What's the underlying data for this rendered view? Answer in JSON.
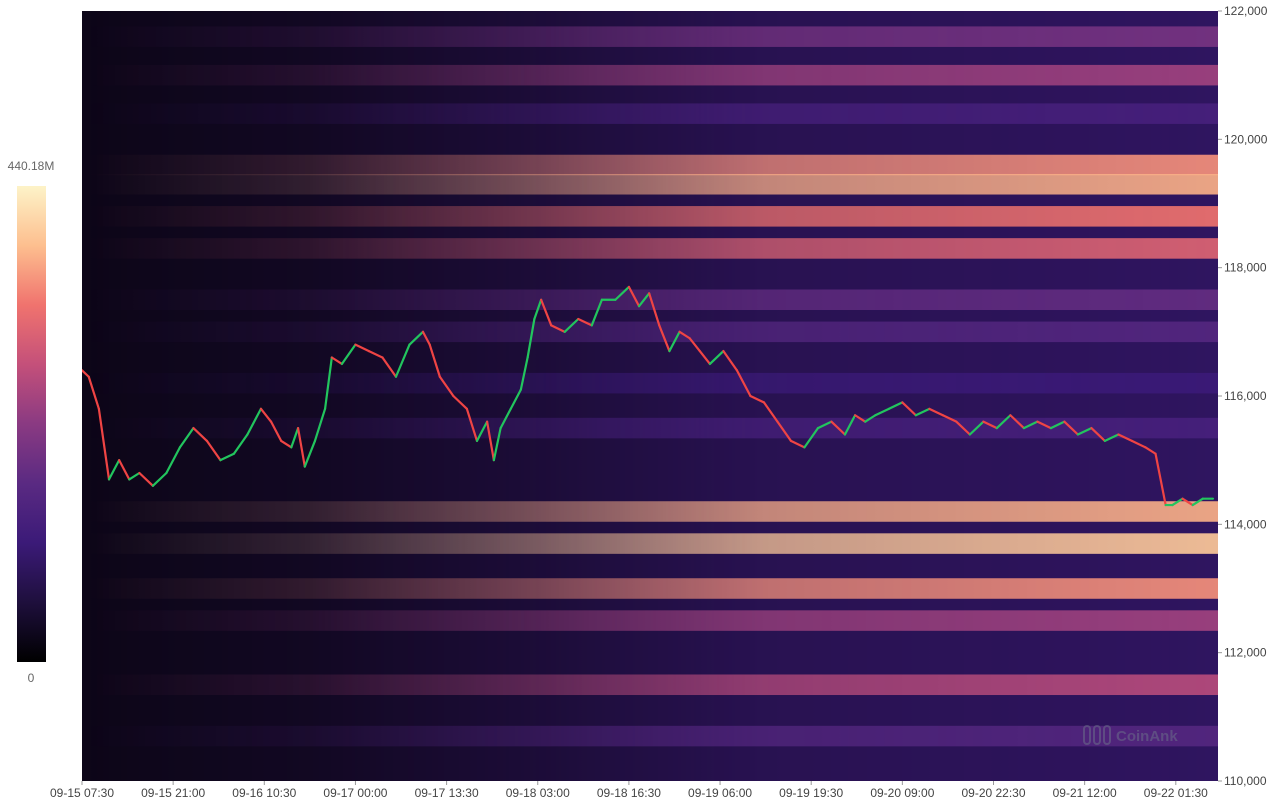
{
  "chart_data": {
    "type": "heatmap",
    "title": "",
    "xlabel": "",
    "ylabel": "",
    "x_tick_labels": [
      "09-15 07:30",
      "09-15 21:00",
      "09-16 10:30",
      "09-17 00:00",
      "09-17 13:30",
      "09-18 03:00",
      "09-18 16:30",
      "09-19 06:00",
      "09-19 19:30",
      "09-20 09:00",
      "09-20 22:30",
      "09-21 12:00",
      "09-22 01:30"
    ],
    "x_range": [
      "09-15 07:30",
      "09-22 07:45"
    ],
    "y_tick_labels": [
      "122,000",
      "120,000",
      "118,000",
      "116,000",
      "114,000",
      "112,000",
      "110,000"
    ],
    "y_range": [
      110000,
      122000
    ],
    "colorbar": {
      "min_label": "0",
      "max_label": "440.18M",
      "min_value": 0,
      "max_value": 440180000,
      "colors": [
        "#000004",
        "#1b0c41",
        "#4a0c6b",
        "#781c6d",
        "#a52c60",
        "#cf4446",
        "#ed6925",
        "#fb9b06",
        "#f7d13d",
        "#fcffa4"
      ],
      "displayed_colors": [
        "#000000",
        "#1e0f3c",
        "#3b1a78",
        "#5a2a82",
        "#8a3a82",
        "#c4507a",
        "#f0736e",
        "#fdbf8f",
        "#fdf3c8"
      ]
    },
    "liquidity_bands": [
      {
        "price": 121600,
        "level": 0.45
      },
      {
        "price": 121000,
        "level": 0.55
      },
      {
        "price": 120400,
        "level": 0.3
      },
      {
        "price": 119600,
        "level": 0.8
      },
      {
        "price": 119300,
        "level": 0.85
      },
      {
        "price": 118800,
        "level": 0.75
      },
      {
        "price": 118300,
        "level": 0.7
      },
      {
        "price": 117500,
        "level": 0.4
      },
      {
        "price": 117000,
        "level": 0.35
      },
      {
        "price": 116200,
        "level": 0.25
      },
      {
        "price": 115500,
        "level": 0.3
      },
      {
        "price": 114200,
        "level": 0.85
      },
      {
        "price": 113700,
        "level": 0.9
      },
      {
        "price": 113000,
        "level": 0.8
      },
      {
        "price": 112500,
        "level": 0.55
      },
      {
        "price": 111500,
        "level": 0.6
      },
      {
        "price": 110700,
        "level": 0.35
      }
    ],
    "price_series": {
      "name": "",
      "up_color": "#22c55e",
      "down_color": "#ef4444",
      "points": [
        [
          "09-15 07:30",
          116400
        ],
        [
          "09-15 08:30",
          116300
        ],
        [
          "09-15 10:00",
          115800
        ],
        [
          "09-15 11:30",
          114700
        ],
        [
          "09-15 13:00",
          115000
        ],
        [
          "09-15 14:30",
          114700
        ],
        [
          "09-15 16:00",
          114800
        ],
        [
          "09-15 18:00",
          114600
        ],
        [
          "09-15 20:00",
          114800
        ],
        [
          "09-15 22:00",
          115200
        ],
        [
          "09-16 00:00",
          115500
        ],
        [
          "09-16 02:00",
          115300
        ],
        [
          "09-16 04:00",
          115000
        ],
        [
          "09-16 06:00",
          115100
        ],
        [
          "09-16 08:00",
          115400
        ],
        [
          "09-16 10:00",
          115800
        ],
        [
          "09-16 11:30",
          115600
        ],
        [
          "09-16 13:00",
          115300
        ],
        [
          "09-16 14:30",
          115200
        ],
        [
          "09-16 15:30",
          115500
        ],
        [
          "09-16 16:30",
          114900
        ],
        [
          "09-16 18:00",
          115300
        ],
        [
          "09-16 19:30",
          115800
        ],
        [
          "09-16 20:30",
          116600
        ],
        [
          "09-16 22:00",
          116500
        ],
        [
          "09-17 00:00",
          116800
        ],
        [
          "09-17 02:00",
          116700
        ],
        [
          "09-17 04:00",
          116600
        ],
        [
          "09-17 06:00",
          116300
        ],
        [
          "09-17 08:00",
          116800
        ],
        [
          "09-17 10:00",
          117000
        ],
        [
          "09-17 11:00",
          116800
        ],
        [
          "09-17 12:30",
          116300
        ],
        [
          "09-17 14:30",
          116000
        ],
        [
          "09-17 16:30",
          115800
        ],
        [
          "09-17 18:00",
          115300
        ],
        [
          "09-17 19:30",
          115600
        ],
        [
          "09-17 20:30",
          115000
        ],
        [
          "09-17 21:30",
          115500
        ],
        [
          "09-17 23:00",
          115800
        ],
        [
          "09-18 00:30",
          116100
        ],
        [
          "09-18 01:30",
          116600
        ],
        [
          "09-18 02:30",
          117200
        ],
        [
          "09-18 03:30",
          117500
        ],
        [
          "09-18 05:00",
          117100
        ],
        [
          "09-18 07:00",
          117000
        ],
        [
          "09-18 09:00",
          117200
        ],
        [
          "09-18 11:00",
          117100
        ],
        [
          "09-18 12:30",
          117500
        ],
        [
          "09-18 14:30",
          117500
        ],
        [
          "09-18 16:30",
          117700
        ],
        [
          "09-18 18:00",
          117400
        ],
        [
          "09-18 19:30",
          117600
        ],
        [
          "09-18 21:00",
          117100
        ],
        [
          "09-18 22:30",
          116700
        ],
        [
          "09-19 00:00",
          117000
        ],
        [
          "09-19 01:30",
          116900
        ],
        [
          "09-19 03:00",
          116700
        ],
        [
          "09-19 04:30",
          116500
        ],
        [
          "09-19 06:30",
          116700
        ],
        [
          "09-19 08:30",
          116400
        ],
        [
          "09-19 10:30",
          116000
        ],
        [
          "09-19 12:30",
          115900
        ],
        [
          "09-19 14:30",
          115600
        ],
        [
          "09-19 16:30",
          115300
        ],
        [
          "09-19 18:30",
          115200
        ],
        [
          "09-19 20:30",
          115500
        ],
        [
          "09-19 22:30",
          115600
        ],
        [
          "09-20 00:30",
          115400
        ],
        [
          "09-20 02:00",
          115700
        ],
        [
          "09-20 03:30",
          115600
        ],
        [
          "09-20 05:00",
          115700
        ],
        [
          "09-20 07:00",
          115800
        ],
        [
          "09-20 09:00",
          115900
        ],
        [
          "09-20 11:00",
          115700
        ],
        [
          "09-20 13:00",
          115800
        ],
        [
          "09-20 15:00",
          115700
        ],
        [
          "09-20 17:00",
          115600
        ],
        [
          "09-20 19:00",
          115400
        ],
        [
          "09-20 21:00",
          115600
        ],
        [
          "09-20 23:00",
          115500
        ],
        [
          "09-21 01:00",
          115700
        ],
        [
          "09-21 03:00",
          115500
        ],
        [
          "09-21 05:00",
          115600
        ],
        [
          "09-21 07:00",
          115500
        ],
        [
          "09-21 09:00",
          115600
        ],
        [
          "09-21 11:00",
          115400
        ],
        [
          "09-21 13:00",
          115500
        ],
        [
          "09-21 15:00",
          115300
        ],
        [
          "09-21 17:00",
          115400
        ],
        [
          "09-21 19:00",
          115300
        ],
        [
          "09-21 21:00",
          115200
        ],
        [
          "09-21 22:30",
          115100
        ],
        [
          "09-22 00:00",
          114300
        ],
        [
          "09-22 01:00",
          114300
        ],
        [
          "09-22 02:30",
          114400
        ],
        [
          "09-22 04:00",
          114300
        ],
        [
          "09-22 05:30",
          114400
        ],
        [
          "09-22 07:00",
          114400
        ]
      ]
    },
    "grid": false,
    "legend": "left-colorbar"
  },
  "watermark": {
    "text": "CoinAnk",
    "icon": "coinank-logo-icon"
  }
}
